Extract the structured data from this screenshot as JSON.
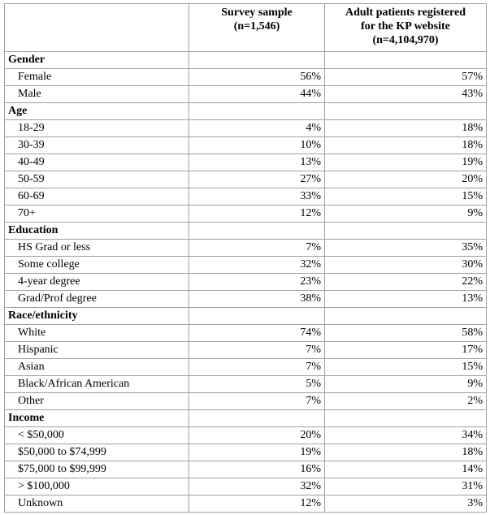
{
  "table": {
    "header": [
      [],
      [
        "Survey sample",
        "(n=1,546)"
      ],
      [
        "Adult patients registered",
        "for the KP website",
        "(n=4,104,970)"
      ]
    ],
    "sections": [
      {
        "title": "Gender",
        "rows": [
          [
            "Female",
            "56%",
            "57%"
          ],
          [
            "Male",
            "44%",
            "43%"
          ]
        ]
      },
      {
        "title": "Age",
        "rows": [
          [
            "18-29",
            "4%",
            "18%"
          ],
          [
            "30-39",
            "10%",
            "18%"
          ],
          [
            "40-49",
            "13%",
            "19%"
          ],
          [
            "50-59",
            "27%",
            "20%"
          ],
          [
            "60-69",
            "33%",
            "15%"
          ],
          [
            "70+",
            "12%",
            "9%"
          ]
        ]
      },
      {
        "title": "Education",
        "rows": [
          [
            "HS Grad or less",
            "7%",
            "35%"
          ],
          [
            "Some college",
            "32%",
            "30%"
          ],
          [
            "4-year degree",
            "23%",
            "22%"
          ],
          [
            "Grad/Prof degree",
            "38%",
            "13%"
          ]
        ]
      },
      {
        "title": "Race/ethnicity",
        "rows": [
          [
            "White",
            "74%",
            "58%"
          ],
          [
            "Hispanic",
            "7%",
            "17%"
          ],
          [
            "Asian",
            "7%",
            "15%"
          ],
          [
            "Black/African American",
            "5%",
            "9%"
          ],
          [
            "Other",
            "7%",
            "2%"
          ]
        ]
      },
      {
        "title": "Income",
        "rows": [
          [
            "< $50,000",
            "20%",
            "34%"
          ],
          [
            "$50,000 to $74,999",
            "19%",
            "18%"
          ],
          [
            "$75,000 to $99,999",
            "16%",
            "14%"
          ],
          [
            "> $100,000",
            "32%",
            "31%"
          ],
          [
            "Unknown",
            "12%",
            "3%"
          ]
        ]
      }
    ]
  }
}
